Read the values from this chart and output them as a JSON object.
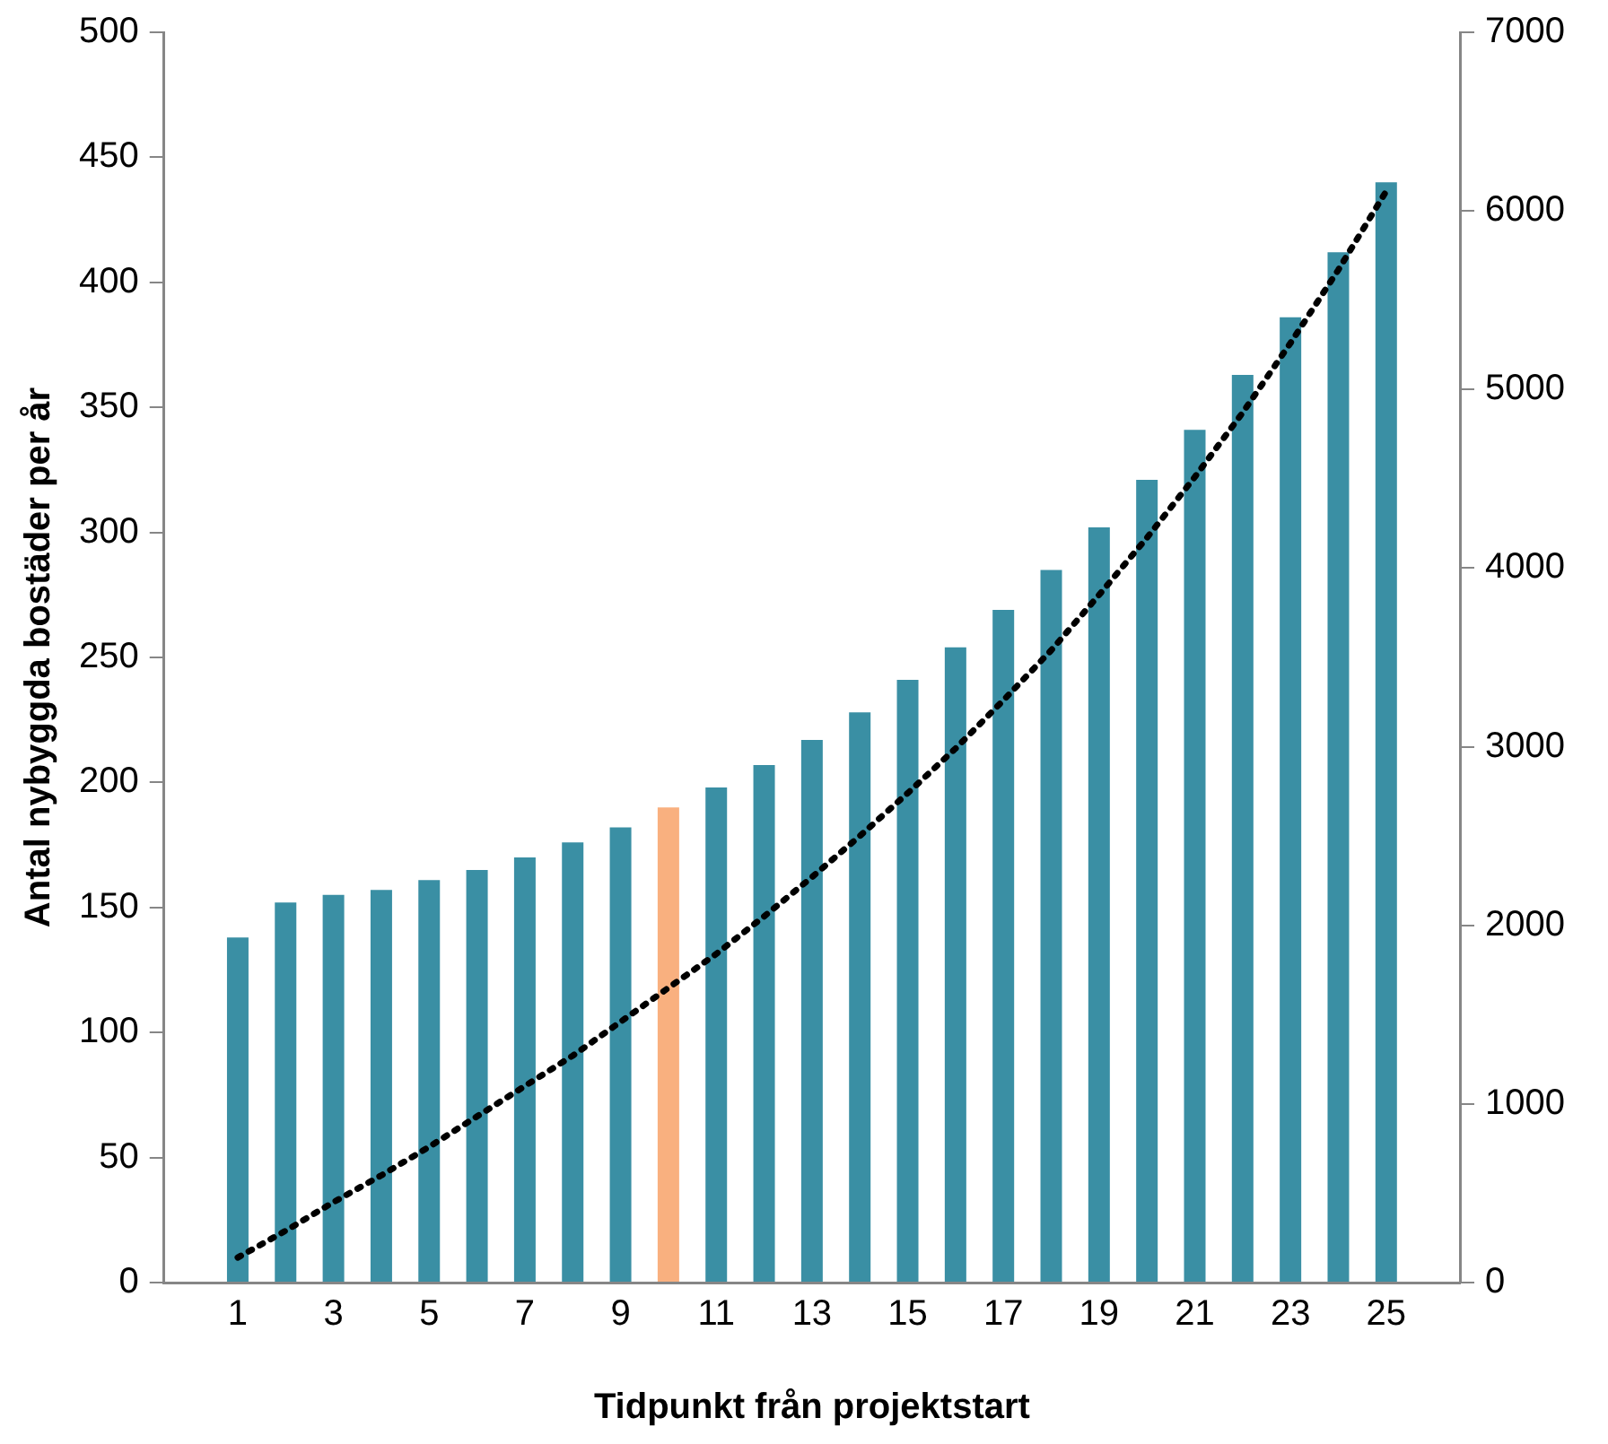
{
  "chart_data": {
    "type": "bar",
    "xlabel": "Tidpunkt från projektstart",
    "ylabel": "Antal nybyggda bostäder per år",
    "x": [
      1,
      2,
      3,
      4,
      5,
      6,
      7,
      8,
      9,
      10,
      11,
      12,
      13,
      14,
      15,
      16,
      17,
      18,
      19,
      20,
      21,
      22,
      23,
      24,
      25
    ],
    "xlim": [
      0.5,
      25.5
    ],
    "xticks": [
      1,
      3,
      5,
      7,
      9,
      11,
      13,
      15,
      17,
      19,
      21,
      23,
      25
    ],
    "series": [
      {
        "color": "#3a8fa4",
        "colors": [
          null,
          null,
          null,
          null,
          null,
          null,
          null,
          null,
          null,
          "#f9b07f",
          null,
          null,
          null,
          null,
          null,
          null,
          null,
          null,
          null,
          null,
          null,
          null,
          null,
          null,
          null
        ],
        "values": [
          138,
          152,
          155,
          157,
          161,
          165,
          170,
          176,
          182,
          190,
          198,
          207,
          217,
          228,
          241,
          254,
          269,
          285,
          302,
          321,
          341,
          363,
          386,
          412,
          440
        ]
      },
      {
        "type": "line",
        "axis": "y2",
        "color": "#000000",
        "line_style": "dotted",
        "marker": "none",
        "values": [
          140,
          290,
          450,
          600,
          760,
          930,
          1100,
          1270,
          1460,
          1650,
          1840,
          2050,
          2270,
          2500,
          2740,
          2990,
          3260,
          3540,
          3850,
          4170,
          4510,
          4870,
          5260,
          5670,
          6110
        ]
      }
    ],
    "ylim": [
      0,
      500
    ],
    "yticks": [
      0,
      50,
      100,
      150,
      200,
      250,
      300,
      350,
      400,
      450,
      500
    ],
    "y2lim": [
      0,
      7000
    ],
    "y2ticks": [
      0,
      1000,
      2000,
      3000,
      4000,
      5000,
      6000,
      7000
    ],
    "grid": false,
    "legend": false
  }
}
